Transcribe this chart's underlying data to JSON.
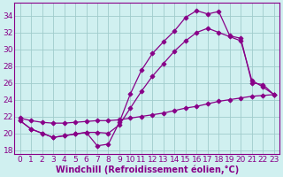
{
  "background_color": "#d0f0f0",
  "line_color": "#880088",
  "grid_color": "#a0cccc",
  "xlabel": "Windchill (Refroidissement éolien,°C)",
  "xlim": [
    -0.5,
    23.5
  ],
  "ylim": [
    17.5,
    35.5
  ],
  "yticks": [
    18,
    20,
    22,
    24,
    26,
    28,
    30,
    32,
    34
  ],
  "xticks": [
    0,
    1,
    2,
    3,
    4,
    5,
    6,
    7,
    8,
    9,
    10,
    11,
    12,
    13,
    14,
    15,
    16,
    17,
    18,
    19,
    20,
    21,
    22,
    23
  ],
  "series1_x": [
    0,
    1,
    2,
    3,
    4,
    5,
    6,
    7,
    8,
    9,
    10,
    11,
    12,
    13,
    14,
    15,
    16,
    17,
    18,
    19,
    20,
    21,
    22,
    23
  ],
  "series1_y": [
    21.5,
    20.5,
    20.0,
    19.5,
    19.7,
    19.9,
    20.1,
    18.5,
    18.7,
    21.3,
    24.7,
    27.5,
    29.5,
    30.9,
    32.2,
    33.8,
    34.6,
    34.2,
    34.5,
    31.6,
    31.3,
    26.0,
    25.8,
    24.6
  ],
  "series2_x": [
    0,
    1,
    2,
    3,
    4,
    5,
    6,
    7,
    8,
    9,
    10,
    11,
    12,
    13,
    14,
    15,
    16,
    17,
    18,
    19,
    20,
    21,
    22,
    23
  ],
  "series2_y": [
    21.5,
    20.5,
    20.0,
    19.5,
    19.7,
    19.9,
    20.1,
    20.1,
    20.0,
    21.0,
    23.0,
    25.0,
    26.8,
    28.3,
    29.8,
    31.0,
    32.0,
    32.5,
    32.0,
    31.5,
    31.0,
    26.3,
    25.5,
    24.6
  ],
  "series3_x": [
    0,
    1,
    2,
    3,
    4,
    5,
    6,
    7,
    8,
    9,
    10,
    11,
    12,
    13,
    14,
    15,
    16,
    17,
    18,
    19,
    20,
    21,
    22,
    23
  ],
  "series3_y": [
    21.8,
    21.5,
    21.3,
    21.2,
    21.2,
    21.3,
    21.4,
    21.5,
    21.5,
    21.6,
    21.8,
    22.0,
    22.2,
    22.4,
    22.7,
    23.0,
    23.2,
    23.5,
    23.8,
    24.0,
    24.2,
    24.4,
    24.5,
    24.6
  ],
  "marker": "D",
  "markersize": 2.5,
  "linewidth": 0.9,
  "xlabel_fontsize": 7,
  "tick_fontsize": 6.5
}
